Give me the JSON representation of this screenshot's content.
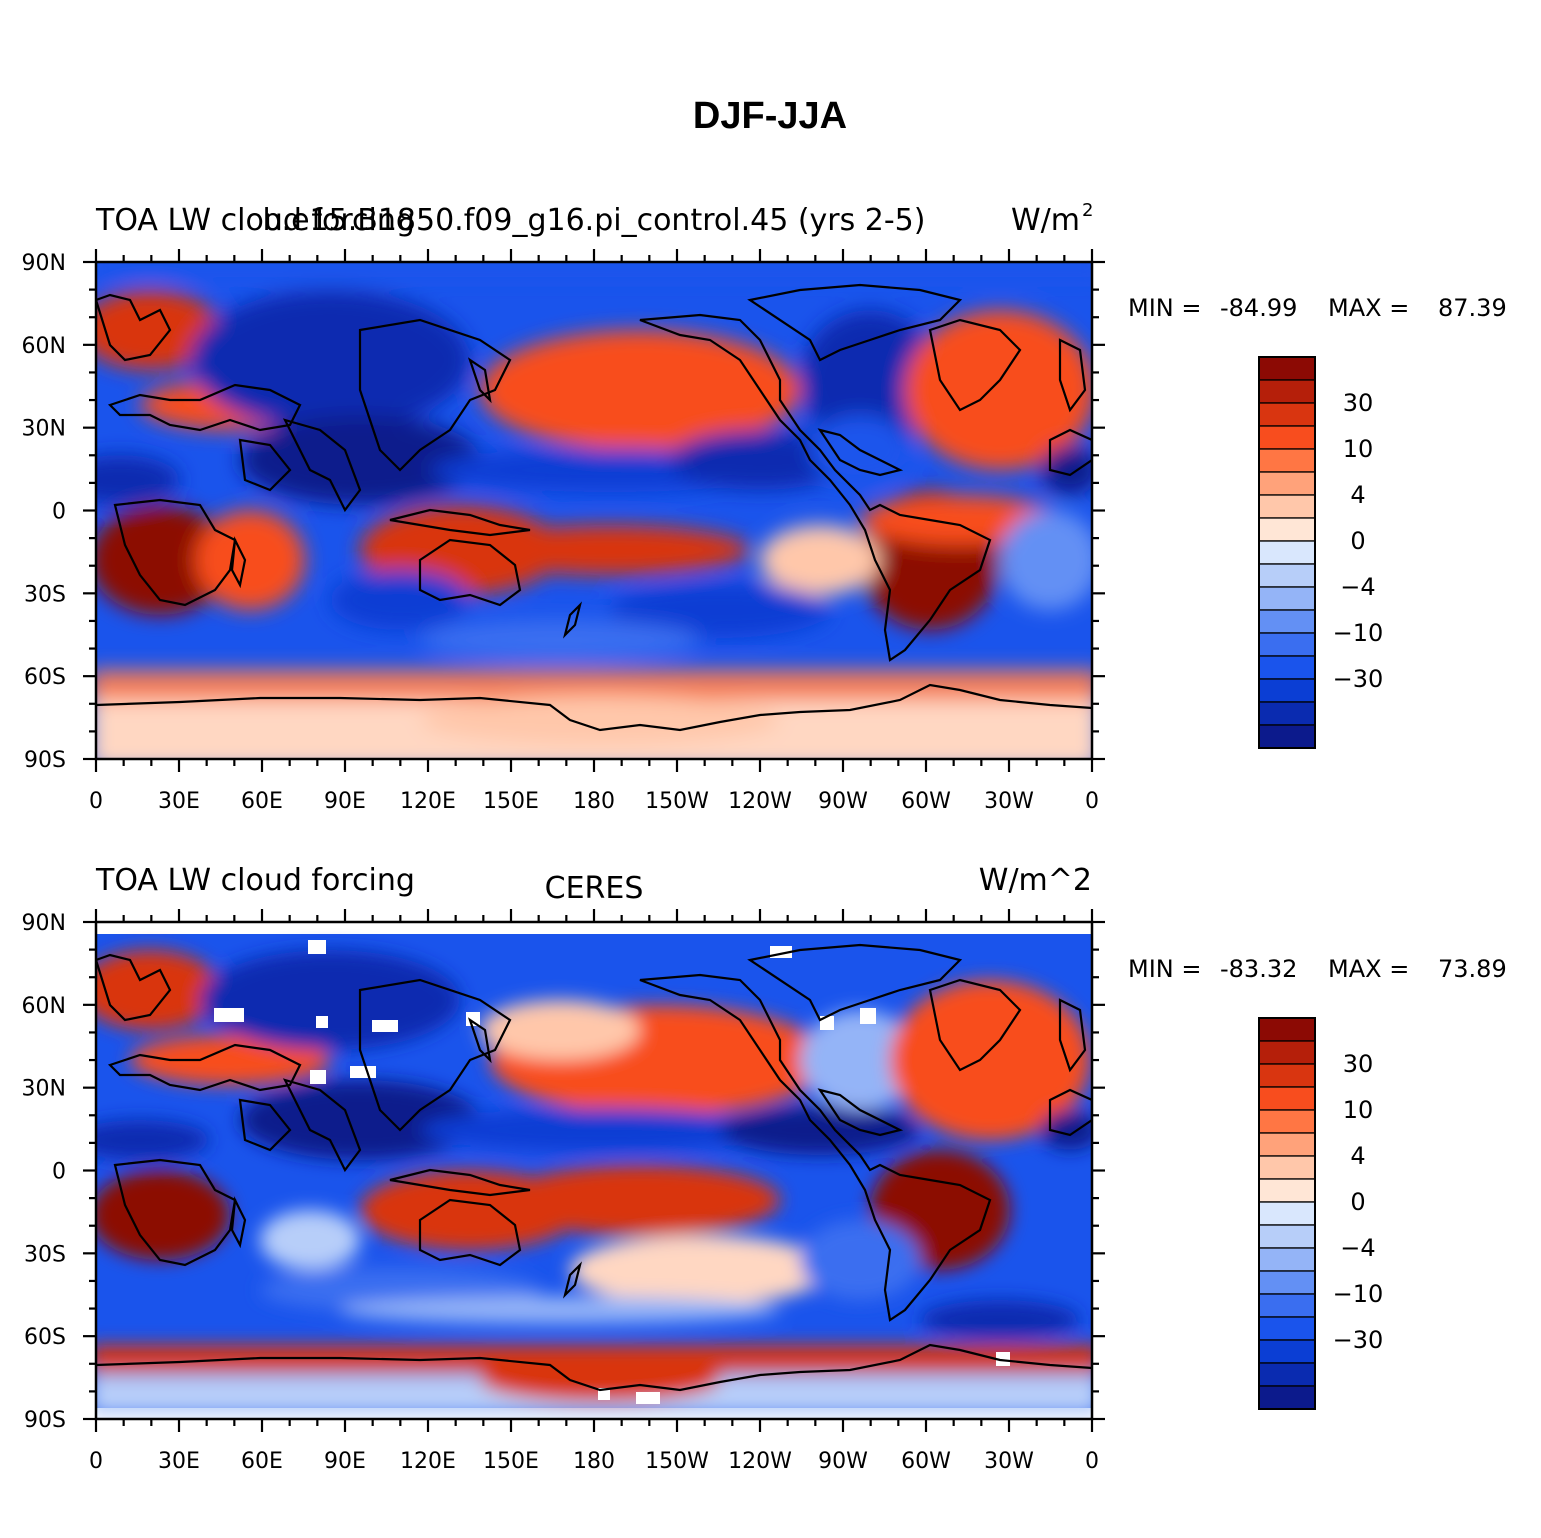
{
  "title": "DJF-JJA",
  "axes": {
    "lat_ticks": [
      "90N",
      "60N",
      "30N",
      "0",
      "30S",
      "60S",
      "90S"
    ],
    "lon_ticks": [
      "0",
      "30E",
      "60E",
      "90E",
      "120E",
      "150E",
      "180",
      "150W",
      "120W",
      "90W",
      "60W",
      "30W",
      "0"
    ]
  },
  "colors": {
    "levels": [
      "#0c1a8c",
      "#0a2bb0",
      "#0b3ed4",
      "#1a54ec",
      "#3a6ef0",
      "#6390f4",
      "#94b4f7",
      "#b7cef9",
      "#d9e7fd",
      "#ffe6d6",
      "#ffc7aa",
      "#ffa27a",
      "#ff7644",
      "#f84d1e",
      "#d93510",
      "#b51f0a",
      "#8c0a04"
    ]
  },
  "panels": [
    {
      "id": "model",
      "left_title": "TOA LW cloud forcing",
      "center_title": "b.e15.B1850.f09_g16.pi_control.45 (yrs 2-5)",
      "right_title": "W/m",
      "right_title_sup": "2",
      "stats": {
        "min_label": "MIN =",
        "min": "-84.99",
        "max_label": "MAX =",
        "max": "87.39"
      },
      "colorbar_labels": [
        "30",
        "10",
        "4",
        "0",
        "−4",
        "−10",
        "−30"
      ]
    },
    {
      "id": "obs",
      "left_title": "TOA LW cloud forcing",
      "center_title": "CERES",
      "right_title": "W/m^2",
      "right_title_sup": "",
      "stats": {
        "min_label": "MIN =",
        "min": "-83.32",
        "max_label": "MAX =",
        "max": "73.89"
      },
      "colorbar_labels": [
        "30",
        "10",
        "4",
        "0",
        "−4",
        "−10",
        "−30"
      ]
    }
  ]
}
